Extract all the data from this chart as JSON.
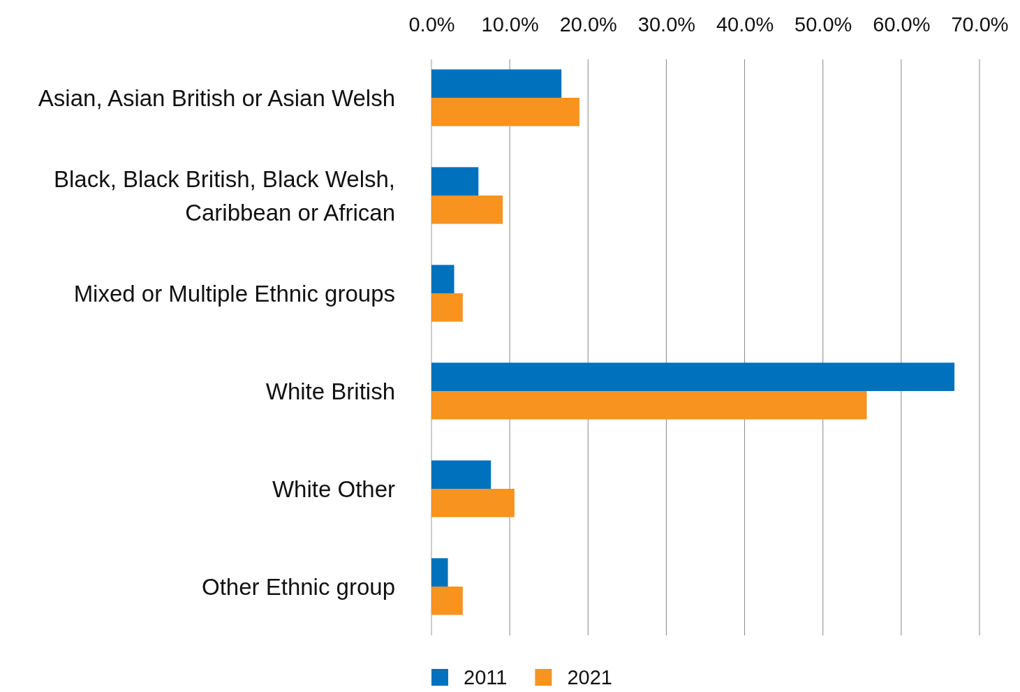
{
  "chart_data": {
    "type": "bar",
    "orientation": "horizontal",
    "categories": [
      "Asian, Asian British or Asian Welsh",
      "Black, Black British, Black Welsh, Caribbean or African",
      "Mixed or Multiple Ethnic groups",
      "White British",
      "White Other",
      "Other Ethnic group"
    ],
    "series": [
      {
        "name": "2011",
        "color": "#0071bc",
        "values": [
          16.6,
          6.0,
          2.9,
          66.8,
          7.6,
          2.1
        ]
      },
      {
        "name": "2021",
        "color": "#f7931e",
        "values": [
          18.9,
          9.1,
          4.0,
          55.6,
          10.6,
          4.0
        ]
      }
    ],
    "xlim": [
      0,
      70
    ],
    "xticks": [
      {
        "value": 0,
        "label": "0.0%"
      },
      {
        "value": 10,
        "label": "10.0%"
      },
      {
        "value": 20,
        "label": "20.0%"
      },
      {
        "value": 30,
        "label": "30.0%"
      },
      {
        "value": 40,
        "label": "40.0%"
      },
      {
        "value": 50,
        "label": "50.0%"
      },
      {
        "value": 60,
        "label": "60.0%"
      },
      {
        "value": 70,
        "label": "70.0%"
      }
    ],
    "grid": "x",
    "legend": "bottom"
  }
}
